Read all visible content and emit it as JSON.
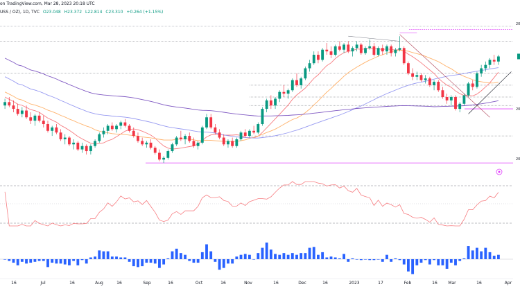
{
  "header": {
    "source_text": "on TradingView.com, Mar 28, 2023 20:18 UTC",
    "symbol_text": "USS / OZ), 1D, TVC",
    "o": "O23.048",
    "h": "H23.372",
    "l": "L22.814",
    "c": "C23.310",
    "change": "+0.264 (+1.15%)"
  },
  "colors": {
    "up": "#089981",
    "down": "#f23645",
    "ma_fast": "#f77c80",
    "ma_mid": "#ffb26b",
    "ma_slow": "#9598f1",
    "ma_200": "#7e57c2",
    "rsi": "#f77c80",
    "histogram": "#2962ff",
    "level_line": "#131722",
    "trendline": "#b0465a",
    "magenta_level": "#e040fb"
  },
  "chart_data": {
    "type": "candlestick",
    "title": "",
    "x_tick_labels": [
      "16",
      "Jul",
      "16",
      "Aug",
      "16",
      "Sep",
      "16",
      "Oct",
      "16",
      "Nov",
      "16",
      "Dec",
      "16",
      "2023",
      "17",
      "Feb",
      "16",
      "Mar",
      "16",
      "Apr"
    ],
    "y_right_labels": [
      "20",
      "20",
      "20"
    ],
    "grid": false,
    "price_axis_side": "right",
    "moving_averages": [
      "ma_fast",
      "ma_mid",
      "ma_slow",
      "ma_200"
    ],
    "rsi_panel": {
      "upper_level": 70,
      "lower_level": 30
    },
    "histogram_panel": {
      "color": "#2962ff"
    },
    "candles": [
      [
        20.4,
        20.8,
        20.2,
        20.6
      ],
      [
        20.6,
        20.9,
        20.3,
        20.4
      ],
      [
        20.4,
        20.7,
        20.0,
        20.2
      ],
      [
        20.2,
        20.5,
        19.8,
        19.9
      ],
      [
        19.9,
        20.3,
        19.7,
        20.1
      ],
      [
        20.1,
        20.4,
        19.6,
        19.7
      ],
      [
        19.7,
        20.0,
        19.3,
        19.5
      ],
      [
        19.5,
        19.9,
        19.2,
        19.8
      ],
      [
        19.8,
        20.0,
        19.4,
        19.5
      ],
      [
        19.5,
        19.8,
        19.1,
        19.3
      ],
      [
        19.3,
        19.5,
        18.8,
        18.9
      ],
      [
        18.9,
        19.2,
        18.6,
        19.1
      ],
      [
        19.1,
        19.3,
        18.7,
        18.8
      ],
      [
        18.8,
        19.0,
        18.3,
        18.4
      ],
      [
        18.4,
        18.7,
        18.1,
        18.5
      ],
      [
        18.5,
        18.6,
        18.0,
        18.1
      ],
      [
        18.1,
        18.4,
        17.8,
        18.2
      ],
      [
        18.2,
        18.3,
        17.7,
        17.8
      ],
      [
        17.8,
        18.2,
        17.6,
        18.0
      ],
      [
        18.0,
        18.1,
        17.5,
        17.7
      ],
      [
        17.7,
        18.1,
        17.5,
        18.0
      ],
      [
        18.0,
        18.4,
        17.9,
        18.3
      ],
      [
        18.3,
        18.8,
        18.2,
        18.7
      ],
      [
        18.7,
        19.1,
        18.5,
        18.9
      ],
      [
        18.9,
        19.3,
        18.7,
        19.2
      ],
      [
        19.2,
        19.4,
        18.9,
        19.0
      ],
      [
        19.0,
        19.3,
        18.8,
        19.2
      ],
      [
        19.2,
        19.5,
        19.0,
        19.4
      ],
      [
        19.4,
        19.6,
        19.1,
        19.2
      ],
      [
        19.2,
        19.3,
        18.8,
        18.9
      ],
      [
        18.9,
        19.1,
        18.5,
        18.6
      ],
      [
        18.6,
        18.8,
        18.2,
        18.3
      ],
      [
        18.3,
        18.5,
        18.0,
        18.1
      ],
      [
        18.1,
        18.3,
        17.9,
        18.2
      ],
      [
        18.2,
        18.4,
        17.8,
        17.9
      ],
      [
        17.9,
        18.0,
        17.5,
        17.6
      ],
      [
        17.6,
        17.8,
        17.1,
        17.2
      ],
      [
        17.2,
        17.4,
        17.0,
        17.3
      ],
      [
        17.3,
        17.8,
        17.2,
        17.7
      ],
      [
        17.7,
        18.2,
        17.6,
        18.1
      ],
      [
        18.1,
        18.6,
        18.0,
        18.5
      ],
      [
        18.5,
        18.9,
        18.3,
        18.4
      ],
      [
        18.4,
        18.7,
        18.1,
        18.6
      ],
      [
        18.6,
        18.8,
        18.2,
        18.3
      ],
      [
        18.3,
        18.5,
        17.9,
        18.0
      ],
      [
        18.0,
        18.3,
        17.8,
        18.2
      ],
      [
        18.2,
        19.2,
        18.1,
        19.1
      ],
      [
        19.1,
        19.9,
        19.0,
        19.7
      ],
      [
        19.7,
        19.9,
        19.0,
        19.1
      ],
      [
        19.1,
        19.3,
        18.7,
        18.8
      ],
      [
        18.8,
        19.0,
        18.4,
        18.5
      ],
      [
        18.5,
        18.7,
        18.0,
        18.1
      ],
      [
        18.1,
        18.4,
        17.9,
        18.3
      ],
      [
        18.3,
        18.5,
        17.9,
        18.0
      ],
      [
        18.0,
        18.5,
        17.9,
        18.4
      ],
      [
        18.4,
        18.9,
        18.3,
        18.8
      ],
      [
        18.8,
        19.0,
        18.5,
        18.6
      ],
      [
        18.6,
        19.0,
        18.5,
        18.9
      ],
      [
        18.9,
        19.2,
        18.7,
        18.8
      ],
      [
        18.8,
        19.4,
        18.7,
        19.3
      ],
      [
        19.3,
        20.3,
        19.2,
        20.2
      ],
      [
        20.2,
        20.8,
        20.0,
        20.7
      ],
      [
        20.7,
        21.0,
        20.2,
        20.4
      ],
      [
        20.4,
        20.9,
        20.2,
        20.8
      ],
      [
        20.8,
        21.3,
        20.6,
        21.2
      ],
      [
        21.2,
        21.6,
        20.9,
        21.1
      ],
      [
        21.1,
        21.4,
        20.8,
        21.3
      ],
      [
        21.3,
        22.0,
        21.2,
        21.9
      ],
      [
        21.9,
        22.3,
        21.5,
        21.6
      ],
      [
        21.6,
        22.1,
        21.4,
        22.0
      ],
      [
        22.0,
        22.7,
        21.9,
        22.6
      ],
      [
        22.6,
        23.1,
        22.4,
        22.9
      ],
      [
        22.9,
        23.6,
        22.8,
        23.4
      ],
      [
        23.4,
        23.6,
        22.9,
        23.1
      ],
      [
        23.1,
        23.8,
        23.0,
        23.7
      ],
      [
        23.7,
        24.1,
        23.4,
        23.6
      ],
      [
        23.6,
        23.9,
        23.2,
        23.4
      ],
      [
        23.4,
        24.0,
        23.3,
        23.9
      ],
      [
        23.9,
        24.2,
        23.6,
        23.7
      ],
      [
        23.7,
        24.1,
        23.5,
        24.0
      ],
      [
        24.0,
        24.2,
        23.5,
        23.6
      ],
      [
        23.6,
        23.9,
        23.3,
        23.8
      ],
      [
        23.8,
        24.2,
        23.6,
        24.0
      ],
      [
        24.0,
        24.1,
        23.4,
        23.5
      ],
      [
        23.5,
        23.9,
        23.4,
        23.8
      ],
      [
        23.8,
        24.3,
        23.7,
        23.9
      ],
      [
        23.9,
        24.1,
        23.3,
        23.4
      ],
      [
        23.4,
        23.9,
        23.3,
        23.8
      ],
      [
        23.8,
        24.0,
        23.4,
        23.6
      ],
      [
        23.6,
        24.0,
        23.4,
        23.9
      ],
      [
        23.9,
        24.0,
        23.3,
        23.5
      ],
      [
        23.5,
        23.8,
        23.3,
        23.7
      ],
      [
        23.7,
        24.5,
        23.6,
        23.8
      ],
      [
        23.8,
        23.9,
        22.8,
        22.9
      ],
      [
        22.9,
        23.0,
        22.2,
        22.3
      ],
      [
        22.3,
        22.6,
        21.9,
        22.1
      ],
      [
        22.1,
        22.4,
        21.9,
        22.2
      ],
      [
        22.2,
        22.3,
        21.8,
        21.9
      ],
      [
        21.9,
        22.2,
        21.7,
        22.0
      ],
      [
        22.0,
        22.1,
        21.5,
        21.6
      ],
      [
        21.6,
        21.9,
        21.3,
        21.8
      ],
      [
        21.8,
        21.9,
        21.2,
        21.3
      ],
      [
        21.3,
        21.5,
        20.8,
        20.9
      ],
      [
        20.9,
        21.1,
        20.5,
        20.7
      ],
      [
        20.7,
        21.0,
        20.4,
        20.9
      ],
      [
        20.9,
        21.0,
        20.1,
        20.2
      ],
      [
        20.2,
        20.6,
        20.0,
        20.5
      ],
      [
        20.5,
        21.1,
        20.4,
        21.0
      ],
      [
        21.0,
        21.8,
        20.9,
        21.7
      ],
      [
        21.7,
        21.9,
        21.3,
        21.5
      ],
      [
        21.5,
        22.4,
        21.4,
        22.3
      ],
      [
        22.3,
        22.8,
        22.1,
        22.6
      ],
      [
        22.6,
        23.0,
        22.4,
        22.8
      ],
      [
        22.8,
        23.2,
        22.6,
        23.1
      ],
      [
        23.1,
        23.4,
        22.8,
        23.0
      ],
      [
        23.0,
        23.4,
        22.8,
        23.3
      ]
    ]
  }
}
